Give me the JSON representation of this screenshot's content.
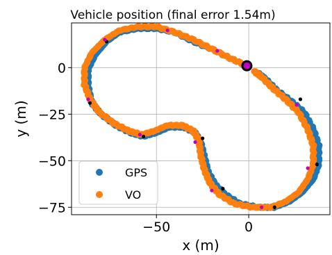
{
  "chart_data": {
    "type": "scatter",
    "title": "Vehicle position (final error 1.54m)",
    "xlabel": "x (m)",
    "ylabel": "y (m)",
    "xlim": [
      -96,
      44
    ],
    "ylim": [
      -79,
      24
    ],
    "xticks": [
      -50,
      0
    ],
    "xtick_labels": [
      "−50",
      "0"
    ],
    "yticks": [
      0,
      -25,
      -50,
      -75
    ],
    "ytick_labels": [
      "0",
      "−25",
      "−50",
      "−75"
    ],
    "grid": true,
    "legend": {
      "position": "lower-left",
      "entries": [
        "GPS",
        "VO"
      ]
    },
    "colors": {
      "gps": "#1f77b4",
      "vo": "#ff7f0e",
      "gps_marker": "#000000",
      "vo_marker": "#c000c0"
    },
    "series": [
      {
        "name": "GPS",
        "points": [
          [
            -1,
            1
          ],
          [
            -10,
            5
          ],
          [
            -20,
            10
          ],
          [
            -30,
            14
          ],
          [
            -40,
            19
          ],
          [
            -50,
            21
          ],
          [
            -60,
            21
          ],
          [
            -70,
            19
          ],
          [
            -77,
            14
          ],
          [
            -83,
            7
          ],
          [
            -87,
            -1
          ],
          [
            -87,
            -10
          ],
          [
            -85,
            -19
          ],
          [
            -80,
            -25
          ],
          [
            -72,
            -31
          ],
          [
            -64,
            -35
          ],
          [
            -57,
            -37
          ],
          [
            -50,
            -35
          ],
          [
            -43,
            -32
          ],
          [
            -35,
            -32
          ],
          [
            -29,
            -35
          ],
          [
            -26,
            -40
          ],
          [
            -24,
            -48
          ],
          [
            -22,
            -56
          ],
          [
            -18,
            -63
          ],
          [
            -13,
            -68
          ],
          [
            -5,
            -73
          ],
          [
            5,
            -75
          ],
          [
            14,
            -75
          ],
          [
            22,
            -72
          ],
          [
            29,
            -67
          ],
          [
            35,
            -60
          ],
          [
            38,
            -52
          ],
          [
            38,
            -42
          ],
          [
            35,
            -33
          ],
          [
            30,
            -24
          ],
          [
            23,
            -18
          ],
          [
            15,
            -12
          ],
          [
            9,
            -6
          ],
          [
            5,
            -3
          ]
        ],
        "markers": [
          [
            -77,
            14
          ],
          [
            -86,
            -19
          ],
          [
            -57,
            -37
          ],
          [
            -25,
            -38
          ],
          [
            -14,
            -65
          ],
          [
            14,
            -75
          ],
          [
            37,
            -52
          ],
          [
            28,
            -17
          ]
        ]
      },
      {
        "name": "VO",
        "points": [
          [
            -1,
            1
          ],
          [
            -10,
            5
          ],
          [
            -20,
            10
          ],
          [
            -30,
            15
          ],
          [
            -40,
            19
          ],
          [
            -50,
            22
          ],
          [
            -60,
            22
          ],
          [
            -70,
            20
          ],
          [
            -78,
            15
          ],
          [
            -85,
            8
          ],
          [
            -89,
            0
          ],
          [
            -89,
            -9
          ],
          [
            -86,
            -17
          ],
          [
            -81,
            -24
          ],
          [
            -73,
            -30
          ],
          [
            -65,
            -34
          ],
          [
            -58,
            -36
          ],
          [
            -51,
            -34
          ],
          [
            -44,
            -31
          ],
          [
            -36,
            -31
          ],
          [
            -30,
            -34
          ],
          [
            -27,
            -39
          ],
          [
            -26,
            -47
          ],
          [
            -24,
            -55
          ],
          [
            -21,
            -62
          ],
          [
            -16,
            -68
          ],
          [
            -8,
            -73
          ],
          [
            2,
            -75
          ],
          [
            12,
            -75
          ],
          [
            20,
            -72
          ],
          [
            27,
            -67
          ],
          [
            32,
            -60
          ],
          [
            35,
            -52
          ],
          [
            35,
            -42
          ],
          [
            32,
            -33
          ],
          [
            27,
            -24
          ],
          [
            20,
            -17
          ],
          [
            13,
            -11
          ],
          [
            7,
            -5
          ],
          [
            3,
            -2
          ]
        ],
        "markers": [
          [
            -78,
            15
          ],
          [
            -44,
            20
          ],
          [
            -17,
            9
          ],
          [
            -87,
            -17
          ],
          [
            -59,
            -36
          ],
          [
            -29,
            -40
          ],
          [
            -20,
            -66
          ],
          [
            7,
            -75
          ],
          [
            32,
            -54
          ],
          [
            26,
            -20
          ]
        ]
      }
    ],
    "start_point": [
      -1,
      1
    ]
  }
}
